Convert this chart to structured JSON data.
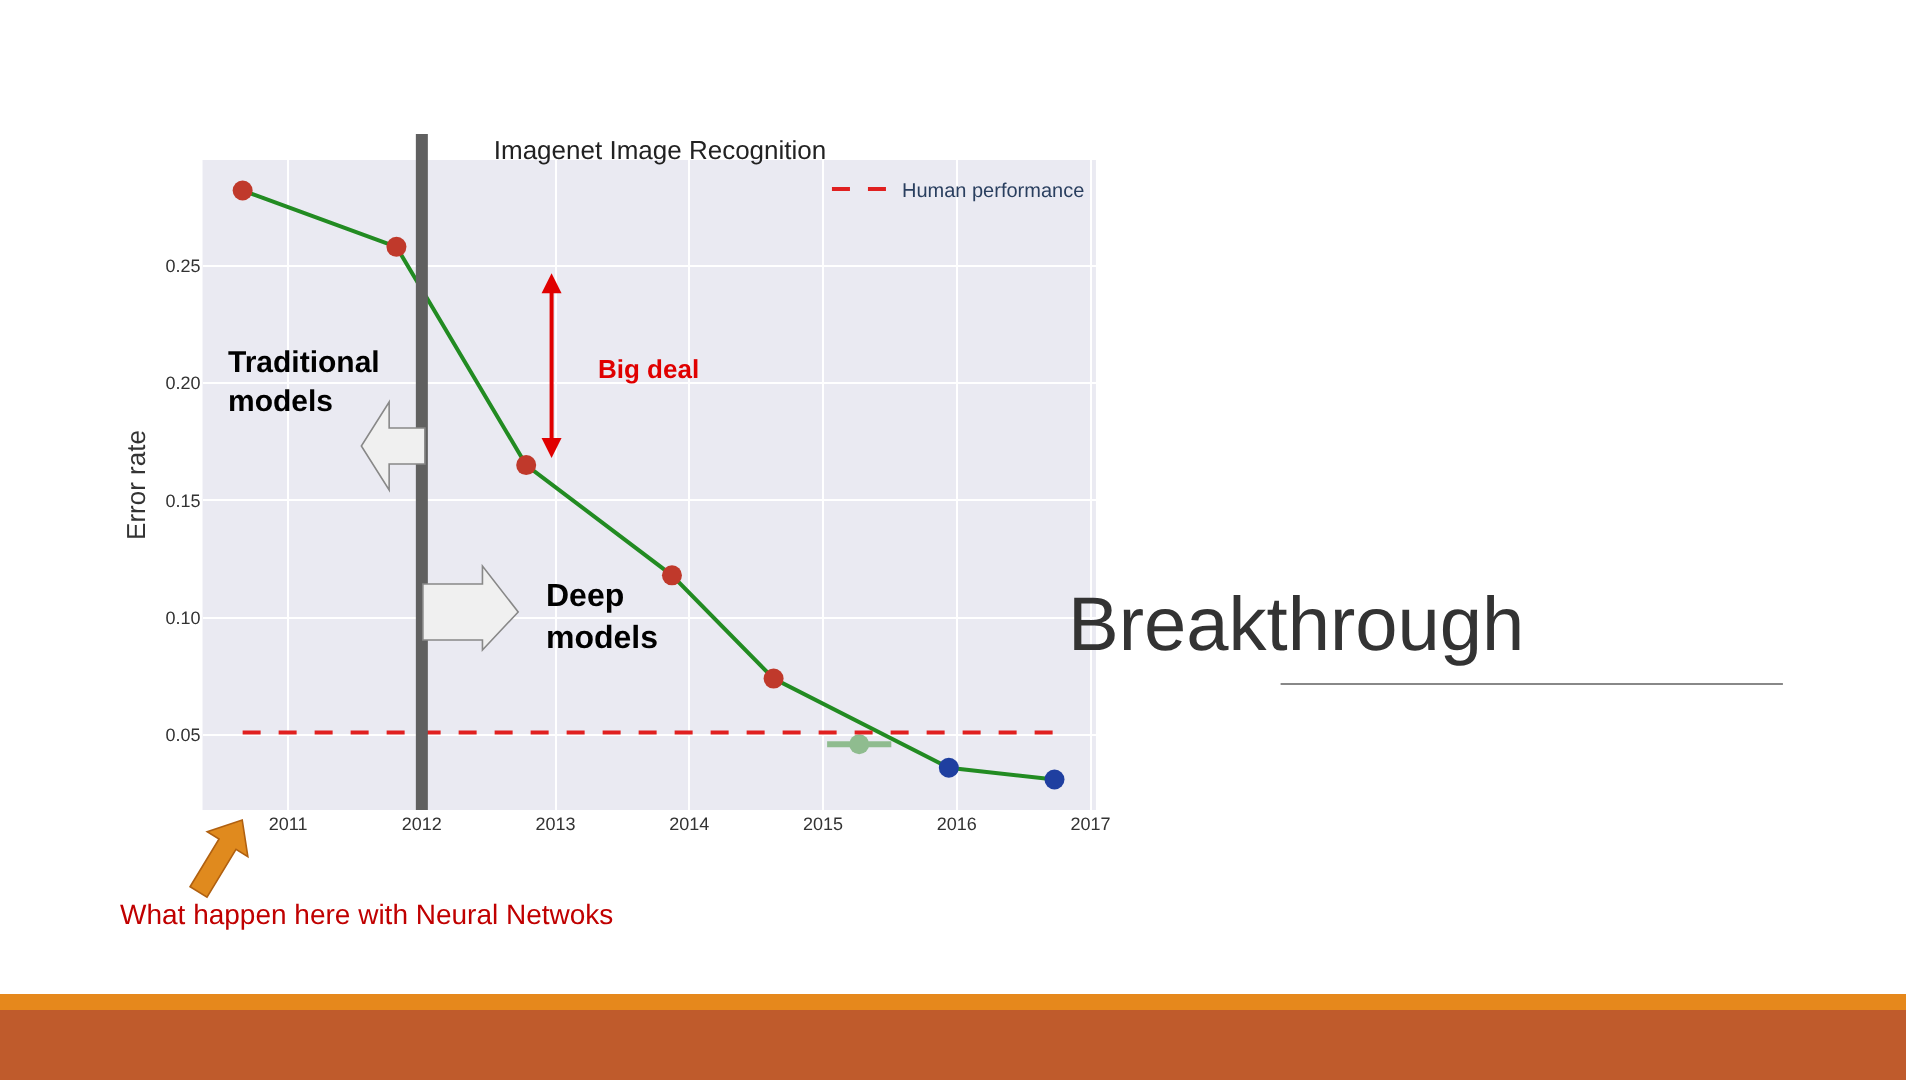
{
  "chart_data": {
    "type": "line",
    "title": "Imagenet Image Recognition",
    "ylabel": "Error rate",
    "x": [
      2010.66,
      2011.81,
      2012.78,
      2013.87,
      2014.63,
      2015.94,
      2016.73
    ],
    "series": [
      {
        "color": "#228b22",
        "colors": [
          "#c0392b",
          "#c0392b",
          "#c0392b",
          "#c0392b",
          "#c0392b",
          "#1f3fa0",
          "#1f3fa0"
        ],
        "values": [
          0.282,
          0.258,
          0.165,
          0.118,
          0.074,
          0.036,
          0.031
        ],
        "marker": "circle"
      },
      {
        "type": "scatter",
        "color": "#8fbc8f",
        "x": [
          2015.27
        ],
        "values": [
          0.046
        ],
        "xerrors": [
          0.24
        ],
        "marker": "circle"
      },
      {
        "name": "Human performance",
        "color": "#e02020",
        "x": [
          2010.66,
          2016.73
        ],
        "values": [
          0.051,
          0.051
        ],
        "line_style": "dashed",
        "marker": "none"
      }
    ],
    "ref_lines": [
      {
        "axis": "x",
        "value": 2012,
        "color": "#606060"
      }
    ],
    "xlim": [
      2010.36,
      2017.04
    ],
    "ylim": [
      0.018,
      0.295
    ],
    "xticks": [
      2011,
      2012,
      2013,
      2014,
      2015,
      2016,
      2017
    ],
    "yticks": [
      {
        "value": 0.05,
        "label": "0.05"
      },
      {
        "value": 0.1,
        "label": "0.10"
      },
      {
        "value": 0.15,
        "label": "0.15"
      },
      {
        "value": 0.2,
        "label": "0.20"
      },
      {
        "value": 0.25,
        "label": "0.25"
      }
    ],
    "grid": true,
    "legend": "top right",
    "annotations": [
      "Big deal",
      "Traditional models",
      "Deep models",
      "Breakthrough",
      "What happen here with Neural Netwoks"
    ]
  }
}
